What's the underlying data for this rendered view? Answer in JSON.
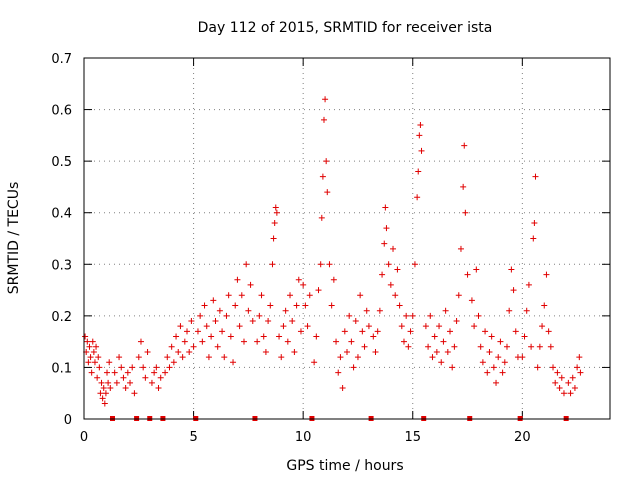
{
  "chart_data": {
    "type": "scatter",
    "title": "Day 112 of 2015, SRMTID for receiver ista",
    "xlabel": "GPS time / hours",
    "ylabel": "SRMTID / TECUs",
    "xlim": [
      0,
      24
    ],
    "ylim": [
      0,
      0.7
    ],
    "x_ticks": [
      0,
      5,
      10,
      15,
      20
    ],
    "x_tick_labels": [
      "0",
      "5",
      "10",
      "15",
      "20"
    ],
    "y_ticks": [
      0,
      0.1,
      0.2,
      0.3,
      0.4,
      0.5,
      0.6,
      0.7
    ],
    "y_tick_labels": [
      "0",
      "0.1",
      "0.2",
      "0.3",
      "0.4",
      "0.5",
      "0.6",
      "0.7"
    ],
    "grid": true,
    "marker": "+",
    "color": "#e00000",
    "gap_markers_x": [
      1.3,
      2.4,
      3.0,
      3.6,
      5.1,
      7.8,
      10.4,
      13.1,
      15.5,
      17.6,
      19.9,
      22.0
    ],
    "series": [
      {
        "name": "SRMTID",
        "points": [
          [
            0.05,
            0.16
          ],
          [
            0.1,
            0.13
          ],
          [
            0.15,
            0.15
          ],
          [
            0.2,
            0.11
          ],
          [
            0.25,
            0.14
          ],
          [
            0.3,
            0.12
          ],
          [
            0.35,
            0.09
          ],
          [
            0.4,
            0.15
          ],
          [
            0.45,
            0.13
          ],
          [
            0.5,
            0.11
          ],
          [
            0.55,
            0.14
          ],
          [
            0.6,
            0.08
          ],
          [
            0.65,
            0.12
          ],
          [
            0.7,
            0.1
          ],
          [
            0.75,
            0.05
          ],
          [
            0.8,
            0.07
          ],
          [
            0.85,
            0.04
          ],
          [
            0.9,
            0.06
          ],
          [
            0.95,
            0.03
          ],
          [
            1.0,
            0.05
          ],
          [
            1.05,
            0.09
          ],
          [
            1.1,
            0.07
          ],
          [
            1.15,
            0.11
          ],
          [
            1.2,
            0.06
          ],
          [
            1.4,
            0.09
          ],
          [
            1.5,
            0.07
          ],
          [
            1.6,
            0.12
          ],
          [
            1.7,
            0.1
          ],
          [
            1.8,
            0.08
          ],
          [
            1.9,
            0.06
          ],
          [
            2.0,
            0.09
          ],
          [
            2.1,
            0.07
          ],
          [
            2.2,
            0.1
          ],
          [
            2.3,
            0.05
          ],
          [
            2.5,
            0.12
          ],
          [
            2.6,
            0.15
          ],
          [
            2.7,
            0.1
          ],
          [
            2.8,
            0.08
          ],
          [
            2.9,
            0.13
          ],
          [
            3.1,
            0.07
          ],
          [
            3.2,
            0.09
          ],
          [
            3.3,
            0.1
          ],
          [
            3.4,
            0.06
          ],
          [
            3.5,
            0.08
          ],
          [
            3.7,
            0.09
          ],
          [
            3.8,
            0.12
          ],
          [
            3.9,
            0.1
          ],
          [
            4.0,
            0.14
          ],
          [
            4.1,
            0.11
          ],
          [
            4.2,
            0.16
          ],
          [
            4.3,
            0.13
          ],
          [
            4.4,
            0.18
          ],
          [
            4.5,
            0.12
          ],
          [
            4.6,
            0.15
          ],
          [
            4.7,
            0.17
          ],
          [
            4.8,
            0.13
          ],
          [
            4.9,
            0.19
          ],
          [
            5.0,
            0.14
          ],
          [
            5.2,
            0.17
          ],
          [
            5.3,
            0.2
          ],
          [
            5.4,
            0.15
          ],
          [
            5.5,
            0.22
          ],
          [
            5.6,
            0.18
          ],
          [
            5.7,
            0.12
          ],
          [
            5.8,
            0.16
          ],
          [
            5.9,
            0.23
          ],
          [
            6.0,
            0.19
          ],
          [
            6.1,
            0.14
          ],
          [
            6.2,
            0.21
          ],
          [
            6.3,
            0.17
          ],
          [
            6.4,
            0.12
          ],
          [
            6.5,
            0.2
          ],
          [
            6.6,
            0.24
          ],
          [
            6.7,
            0.16
          ],
          [
            6.8,
            0.11
          ],
          [
            6.9,
            0.22
          ],
          [
            7.0,
            0.27
          ],
          [
            7.1,
            0.18
          ],
          [
            7.2,
            0.24
          ],
          [
            7.3,
            0.15
          ],
          [
            7.4,
            0.3
          ],
          [
            7.5,
            0.21
          ],
          [
            7.6,
            0.26
          ],
          [
            7.7,
            0.19
          ],
          [
            7.9,
            0.15
          ],
          [
            8.0,
            0.2
          ],
          [
            8.1,
            0.24
          ],
          [
            8.2,
            0.16
          ],
          [
            8.3,
            0.13
          ],
          [
            8.4,
            0.19
          ],
          [
            8.5,
            0.22
          ],
          [
            8.6,
            0.3
          ],
          [
            8.65,
            0.35
          ],
          [
            8.7,
            0.38
          ],
          [
            8.75,
            0.41
          ],
          [
            8.8,
            0.4
          ],
          [
            8.9,
            0.16
          ],
          [
            9.0,
            0.12
          ],
          [
            9.1,
            0.18
          ],
          [
            9.2,
            0.21
          ],
          [
            9.3,
            0.15
          ],
          [
            9.4,
            0.24
          ],
          [
            9.5,
            0.19
          ],
          [
            9.6,
            0.13
          ],
          [
            9.7,
            0.22
          ],
          [
            9.8,
            0.27
          ],
          [
            9.9,
            0.17
          ],
          [
            10.0,
            0.26
          ],
          [
            10.1,
            0.22
          ],
          [
            10.2,
            0.18
          ],
          [
            10.3,
            0.24
          ],
          [
            10.5,
            0.11
          ],
          [
            10.6,
            0.16
          ],
          [
            10.7,
            0.25
          ],
          [
            10.8,
            0.3
          ],
          [
            10.85,
            0.39
          ],
          [
            10.9,
            0.47
          ],
          [
            10.95,
            0.58
          ],
          [
            11.0,
            0.62
          ],
          [
            11.05,
            0.5
          ],
          [
            11.1,
            0.44
          ],
          [
            11.2,
            0.3
          ],
          [
            11.3,
            0.22
          ],
          [
            11.4,
            0.27
          ],
          [
            11.5,
            0.15
          ],
          [
            11.6,
            0.09
          ],
          [
            11.7,
            0.12
          ],
          [
            11.8,
            0.06
          ],
          [
            11.9,
            0.17
          ],
          [
            12.0,
            0.13
          ],
          [
            12.1,
            0.2
          ],
          [
            12.2,
            0.15
          ],
          [
            12.3,
            0.1
          ],
          [
            12.4,
            0.19
          ],
          [
            12.5,
            0.12
          ],
          [
            12.6,
            0.24
          ],
          [
            12.7,
            0.17
          ],
          [
            12.8,
            0.14
          ],
          [
            12.9,
            0.21
          ],
          [
            13.0,
            0.18
          ],
          [
            13.2,
            0.16
          ],
          [
            13.3,
            0.13
          ],
          [
            13.4,
            0.17
          ],
          [
            13.5,
            0.21
          ],
          [
            13.6,
            0.28
          ],
          [
            13.7,
            0.34
          ],
          [
            13.75,
            0.41
          ],
          [
            13.8,
            0.37
          ],
          [
            13.9,
            0.3
          ],
          [
            14.0,
            0.26
          ],
          [
            14.1,
            0.33
          ],
          [
            14.2,
            0.24
          ],
          [
            14.3,
            0.29
          ],
          [
            14.4,
            0.22
          ],
          [
            14.5,
            0.18
          ],
          [
            14.6,
            0.15
          ],
          [
            14.7,
            0.2
          ],
          [
            14.8,
            0.14
          ],
          [
            14.9,
            0.17
          ],
          [
            15.0,
            0.2
          ],
          [
            15.1,
            0.3
          ],
          [
            15.2,
            0.43
          ],
          [
            15.25,
            0.48
          ],
          [
            15.3,
            0.55
          ],
          [
            15.35,
            0.57
          ],
          [
            15.4,
            0.52
          ],
          [
            15.6,
            0.18
          ],
          [
            15.7,
            0.14
          ],
          [
            15.8,
            0.2
          ],
          [
            15.9,
            0.12
          ],
          [
            16.0,
            0.16
          ],
          [
            16.1,
            0.13
          ],
          [
            16.2,
            0.18
          ],
          [
            16.3,
            0.11
          ],
          [
            16.4,
            0.15
          ],
          [
            16.5,
            0.21
          ],
          [
            16.6,
            0.13
          ],
          [
            16.7,
            0.17
          ],
          [
            16.8,
            0.1
          ],
          [
            16.9,
            0.14
          ],
          [
            17.0,
            0.19
          ],
          [
            17.1,
            0.24
          ],
          [
            17.2,
            0.33
          ],
          [
            17.3,
            0.45
          ],
          [
            17.35,
            0.53
          ],
          [
            17.4,
            0.4
          ],
          [
            17.5,
            0.28
          ],
          [
            17.7,
            0.23
          ],
          [
            17.8,
            0.18
          ],
          [
            17.9,
            0.29
          ],
          [
            18.0,
            0.2
          ],
          [
            18.1,
            0.14
          ],
          [
            18.2,
            0.11
          ],
          [
            18.3,
            0.17
          ],
          [
            18.4,
            0.09
          ],
          [
            18.5,
            0.13
          ],
          [
            18.6,
            0.16
          ],
          [
            18.7,
            0.1
          ],
          [
            18.8,
            0.07
          ],
          [
            18.9,
            0.12
          ],
          [
            19.0,
            0.15
          ],
          [
            19.1,
            0.09
          ],
          [
            19.2,
            0.11
          ],
          [
            19.3,
            0.14
          ],
          [
            19.4,
            0.21
          ],
          [
            19.5,
            0.29
          ],
          [
            19.6,
            0.25
          ],
          [
            19.7,
            0.17
          ],
          [
            19.8,
            0.12
          ],
          [
            20.0,
            0.12
          ],
          [
            20.1,
            0.16
          ],
          [
            20.2,
            0.21
          ],
          [
            20.3,
            0.26
          ],
          [
            20.4,
            0.14
          ],
          [
            20.5,
            0.35
          ],
          [
            20.55,
            0.38
          ],
          [
            20.6,
            0.47
          ],
          [
            20.7,
            0.1
          ],
          [
            20.8,
            0.14
          ],
          [
            20.9,
            0.18
          ],
          [
            21.0,
            0.22
          ],
          [
            21.1,
            0.28
          ],
          [
            21.2,
            0.17
          ],
          [
            21.3,
            0.14
          ],
          [
            21.4,
            0.1
          ],
          [
            21.5,
            0.07
          ],
          [
            21.6,
            0.09
          ],
          [
            21.7,
            0.06
          ],
          [
            21.8,
            0.08
          ],
          [
            21.9,
            0.05
          ],
          [
            22.1,
            0.07
          ],
          [
            22.2,
            0.05
          ],
          [
            22.3,
            0.08
          ],
          [
            22.4,
            0.06
          ],
          [
            22.5,
            0.1
          ],
          [
            22.6,
            0.12
          ],
          [
            22.65,
            0.09
          ]
        ]
      }
    ]
  }
}
